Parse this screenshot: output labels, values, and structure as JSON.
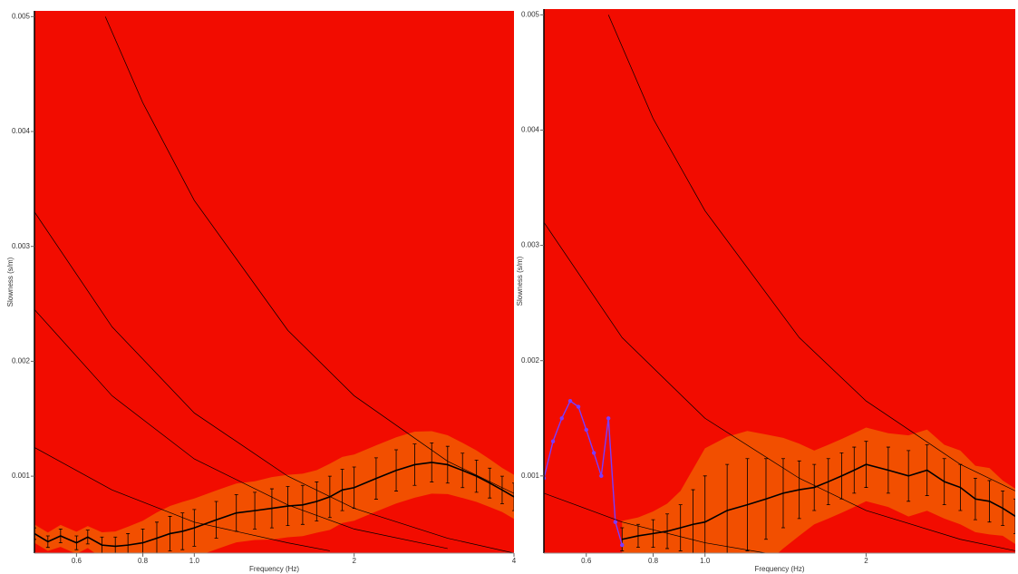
{
  "chart_data": [
    {
      "type": "line",
      "x_label": "Frequency (Hz)",
      "y_label": "Slowness (s/m)",
      "xscale": "log",
      "xlim": [
        0.5,
        4
      ],
      "ylim": [
        0.00033,
        0.00505
      ],
      "xticks": [
        0.6,
        0.8,
        {
          "value": 1,
          "label": "1.0"
        },
        2,
        4
      ],
      "yticks": [
        0.001,
        0.002,
        0.003,
        0.004,
        0.005
      ],
      "background": "#f20c00",
      "band_color": "#f25c00",
      "series": [
        {
          "color": "#000000",
          "x": [
            0.5,
            0.53,
            0.56,
            0.6,
            0.63,
            0.67,
            0.71,
            0.75,
            0.8,
            0.85,
            0.9,
            0.95,
            1.0,
            1.1,
            1.2,
            1.3,
            1.4,
            1.5,
            1.6,
            1.7,
            1.8,
            1.9,
            2.0,
            2.2,
            2.4,
            2.6,
            2.8,
            3.0,
            3.2,
            3.4,
            3.6,
            3.8,
            4.0
          ],
          "values": [
            0.0005,
            0.00043,
            0.00048,
            0.00042,
            0.00047,
            0.0004,
            0.00039,
            0.0004,
            0.00042,
            0.00046,
            0.0005,
            0.00052,
            0.00055,
            0.00062,
            0.00068,
            0.0007,
            0.00072,
            0.00074,
            0.00075,
            0.00078,
            0.00082,
            0.00088,
            0.0009,
            0.00098,
            0.00105,
            0.0011,
            0.00112,
            0.0011,
            0.00105,
            0.001,
            0.00094,
            0.00088,
            0.00082
          ],
          "errors": [
            5e-05,
            5e-05,
            6e-05,
            6e-05,
            6e-05,
            7e-05,
            8e-05,
            0.0001,
            0.00012,
            0.00014,
            0.00015,
            0.00016,
            0.00016,
            0.00016,
            0.00016,
            0.00016,
            0.00017,
            0.00017,
            0.00017,
            0.00017,
            0.00018,
            0.00018,
            0.00018,
            0.00018,
            0.00018,
            0.00018,
            0.00017,
            0.00016,
            0.00015,
            0.00014,
            0.00013,
            0.00012,
            0.00012
          ]
        },
        {
          "color": "#000000",
          "x": [
            0.68,
            0.8,
            1,
            1.5,
            2,
            3,
            4
          ],
          "values": [
            0.005,
            0.00425,
            0.0034,
            0.00227,
            0.0017,
            0.00113,
            0.00085
          ]
        },
        {
          "color": "#000000",
          "x": [
            0.5,
            0.7,
            1,
            1.5,
            2,
            3,
            4
          ],
          "values": [
            0.0033,
            0.0023,
            0.00155,
            0.001,
            0.00072,
            0.00046,
            0.00033
          ]
        },
        {
          "color": "#000000",
          "x": [
            0.5,
            0.7,
            1,
            1.5,
            2,
            3
          ],
          "values": [
            0.00245,
            0.0017,
            0.00115,
            0.00075,
            0.00054,
            0.00037
          ]
        },
        {
          "color": "#000000",
          "x": [
            0.5,
            0.7,
            1,
            1.5,
            1.8
          ],
          "values": [
            0.00125,
            0.00088,
            0.0006,
            0.00042,
            0.00035
          ]
        }
      ]
    },
    {
      "type": "line",
      "x_label": "Frequency (Hz)",
      "y_label": "Slowness (s/m)",
      "xscale": "log",
      "xlim": [
        0.5,
        3.8
      ],
      "ylim": [
        0.00033,
        0.00505
      ],
      "xticks": [
        0.6,
        0.8,
        {
          "value": 1,
          "label": "1.0"
        },
        2
      ],
      "yticks": [
        0.001,
        0.002,
        0.003,
        0.004,
        0.005
      ],
      "background": "#f20c00",
      "band_color": "#f25c00",
      "series": [
        {
          "color": "#000000",
          "x": [
            0.7,
            0.75,
            0.8,
            0.85,
            0.9,
            0.95,
            1.0,
            1.1,
            1.2,
            1.3,
            1.4,
            1.5,
            1.6,
            1.7,
            1.8,
            1.9,
            2.0,
            2.2,
            2.4,
            2.6,
            2.8,
            3.0,
            3.2,
            3.4,
            3.6,
            3.8
          ],
          "values": [
            0.00045,
            0.00048,
            0.0005,
            0.00052,
            0.00055,
            0.00058,
            0.0006,
            0.0007,
            0.00075,
            0.0008,
            0.00085,
            0.00088,
            0.0009,
            0.00095,
            0.001,
            0.00105,
            0.0011,
            0.00105,
            0.001,
            0.00105,
            0.00095,
            0.0009,
            0.0008,
            0.00078,
            0.00072,
            0.00065
          ],
          "errors": [
            0.0001,
            0.0001,
            0.00012,
            0.00015,
            0.0002,
            0.0003,
            0.0004,
            0.0004,
            0.0004,
            0.00035,
            0.0003,
            0.00025,
            0.0002,
            0.0002,
            0.0002,
            0.0002,
            0.0002,
            0.0002,
            0.00022,
            0.00022,
            0.0002,
            0.0002,
            0.00018,
            0.00018,
            0.00015,
            0.00015
          ]
        },
        {
          "color": "#7a3cff",
          "markers": true,
          "x": [
            0.5,
            0.52,
            0.54,
            0.56,
            0.58,
            0.6,
            0.62,
            0.64,
            0.66,
            0.68,
            0.7
          ],
          "values": [
            0.00098,
            0.0013,
            0.0015,
            0.00165,
            0.0016,
            0.0014,
            0.0012,
            0.001,
            0.0015,
            0.0006,
            0.0004
          ]
        },
        {
          "color": "#000000",
          "x": [
            0.66,
            0.8,
            1,
            1.5,
            2,
            3,
            3.8
          ],
          "values": [
            0.005,
            0.0041,
            0.0033,
            0.0022,
            0.00165,
            0.0011,
            0.00087
          ]
        },
        {
          "color": "#000000",
          "x": [
            0.5,
            0.7,
            1,
            1.5,
            2,
            3,
            3.8
          ],
          "values": [
            0.0032,
            0.0022,
            0.0015,
            0.00098,
            0.0007,
            0.00045,
            0.00035
          ]
        },
        {
          "color": "#000000",
          "x": [
            0.5,
            0.7,
            1,
            1.3
          ],
          "values": [
            0.00085,
            0.0006,
            0.00042,
            0.00033
          ]
        }
      ]
    }
  ]
}
